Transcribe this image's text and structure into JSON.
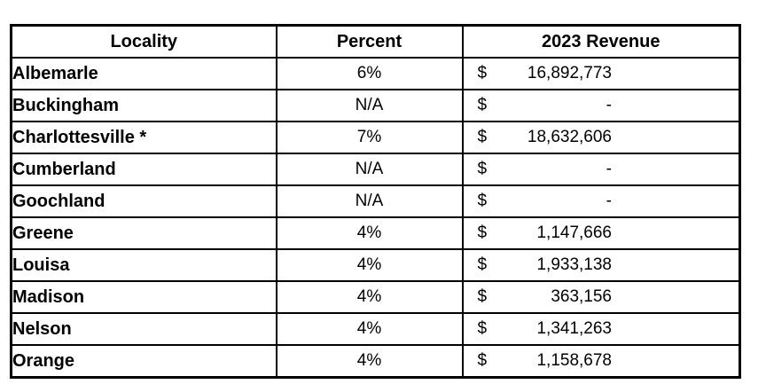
{
  "table": {
    "headers": {
      "locality": "Locality",
      "percent": "Percent",
      "revenue": "2023 Revenue"
    },
    "currency_symbol": "$",
    "rows": [
      {
        "locality": "Albemarle",
        "percent": "6%",
        "currency": "$",
        "amount": "16,892,773"
      },
      {
        "locality": "Buckingham",
        "percent": "N/A",
        "currency": "$",
        "amount": "-"
      },
      {
        "locality": "Charlottesville *",
        "percent": "7%",
        "currency": "$",
        "amount": "18,632,606"
      },
      {
        "locality": "Cumberland",
        "percent": "N/A",
        "currency": "$",
        "amount": "-"
      },
      {
        "locality": "Goochland",
        "percent": "N/A",
        "currency": "$",
        "amount": "-"
      },
      {
        "locality": "Greene",
        "percent": "4%",
        "currency": "$",
        "amount": "1,147,666"
      },
      {
        "locality": "Louisa",
        "percent": "4%",
        "currency": "$",
        "amount": "1,933,138"
      },
      {
        "locality": "Madison",
        "percent": "4%",
        "currency": "$",
        "amount": "363,156"
      },
      {
        "locality": "Nelson",
        "percent": "4%",
        "currency": "$",
        "amount": "1,341,263"
      },
      {
        "locality": "Orange",
        "percent": "4%",
        "currency": "$",
        "amount": "1,158,678"
      }
    ],
    "colors": {
      "border": "#000000",
      "text": "#000000",
      "background": "#ffffff"
    }
  }
}
